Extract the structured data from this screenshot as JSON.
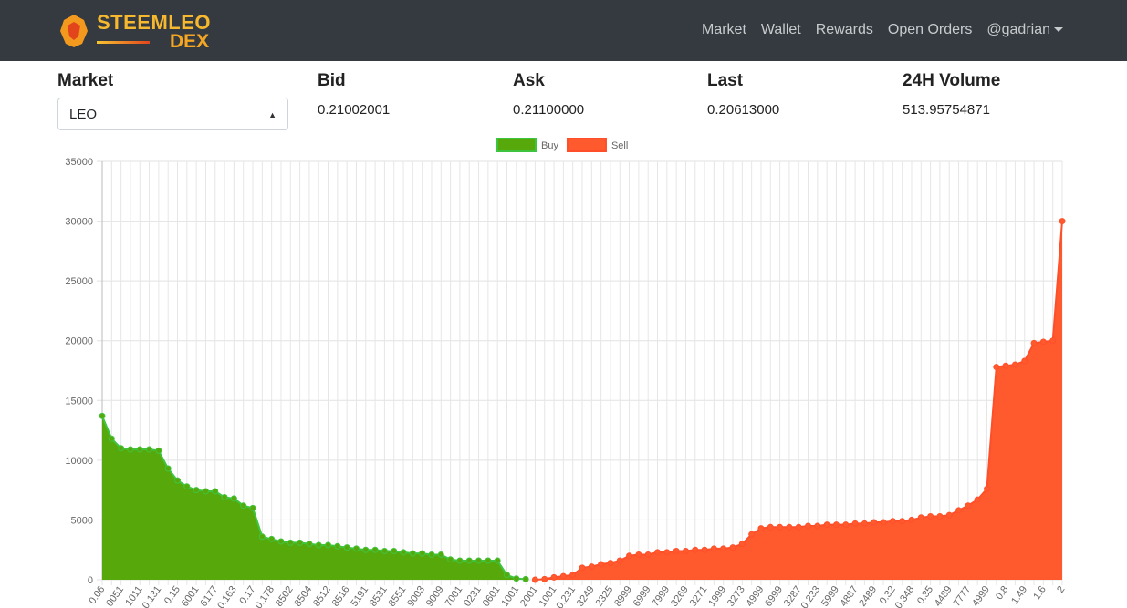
{
  "navbar": {
    "brand": [
      "STEEMLEO",
      "DEX"
    ],
    "links": [
      "Market",
      "Wallet",
      "Rewards",
      "Open Orders",
      "@gadrian"
    ]
  },
  "stats": [
    {
      "label": "Market",
      "value": "LEO"
    },
    {
      "label": "Bid",
      "value": "0.21002001"
    },
    {
      "label": "Ask",
      "value": "0.21100000"
    },
    {
      "label": "Last",
      "value": "0.20613000"
    },
    {
      "label": "24H Volume",
      "value": "513.95754871"
    }
  ],
  "chart_data": {
    "type": "area",
    "legend": "top",
    "categories": [
      "0.06",
      null,
      "0051",
      null,
      "1011",
      null,
      "0.131",
      null,
      "0.15",
      null,
      "6001",
      null,
      "6177",
      null,
      "0.163",
      null,
      "0.17",
      null,
      "0.178",
      null,
      "8502",
      null,
      "8504",
      null,
      "8512",
      null,
      "8516",
      null,
      "5191",
      null,
      "8531",
      null,
      "8551",
      null,
      "9003",
      null,
      "9009",
      null,
      "7001",
      null,
      "0231",
      null,
      "0601",
      null,
      "1001",
      null,
      "2001",
      null,
      "1001",
      null,
      "0.231",
      null,
      "3249",
      null,
      "2325",
      null,
      "8999",
      null,
      "6999",
      null,
      "7999",
      null,
      "3269",
      null,
      "3271",
      null,
      "1999",
      null,
      "3273",
      null,
      "4999",
      null,
      "6999",
      null,
      "3287",
      null,
      "0.233",
      null,
      "5999",
      null,
      "4887",
      null,
      "2489",
      null,
      "0.32",
      null,
      "0.348",
      null,
      "0.35",
      null,
      "4489",
      null,
      "7777",
      null,
      "4999",
      null,
      "0.8",
      null,
      "1.49",
      null,
      "1.6",
      null,
      "2"
    ],
    "series": [
      {
        "name": "Buy",
        "color": "#57a90b",
        "line_color": "#3fc43f",
        "values": [
          13700,
          11800,
          11000,
          10900,
          10900,
          10900,
          10800,
          9300,
          8300,
          7800,
          7500,
          7400,
          7400,
          6900,
          6800,
          6200,
          6000,
          3600,
          3400,
          3200,
          3100,
          3100,
          3000,
          2900,
          2900,
          2800,
          2700,
          2600,
          2500,
          2500,
          2400,
          2400,
          2300,
          2200,
          2200,
          2100,
          2100,
          1700,
          1600,
          1600,
          1600,
          1600,
          1600,
          400,
          100,
          50,
          null,
          null,
          null,
          null,
          null,
          null,
          null,
          null,
          null,
          null,
          null,
          null,
          null,
          null,
          null,
          null,
          null,
          null,
          null,
          null,
          null,
          null,
          null,
          null,
          null,
          null,
          null,
          null,
          null,
          null,
          null,
          null,
          null,
          null,
          null,
          null,
          null,
          null,
          null,
          null,
          null,
          null,
          null,
          null,
          null,
          null,
          null,
          null,
          null,
          null,
          null,
          null,
          null,
          null,
          null,
          null,
          null
        ]
      },
      {
        "name": "Sell",
        "color": "#ff5a2e",
        "line_color": "#ff4f2a",
        "values": [
          null,
          null,
          null,
          null,
          null,
          null,
          null,
          null,
          null,
          null,
          null,
          null,
          null,
          null,
          null,
          null,
          null,
          null,
          null,
          null,
          null,
          null,
          null,
          null,
          null,
          null,
          null,
          null,
          null,
          null,
          null,
          null,
          null,
          null,
          null,
          null,
          null,
          null,
          null,
          null,
          null,
          null,
          null,
          null,
          null,
          null,
          0,
          50,
          200,
          300,
          400,
          1000,
          1100,
          1300,
          1400,
          1600,
          2000,
          2100,
          2100,
          2300,
          2300,
          2400,
          2400,
          2500,
          2500,
          2600,
          2600,
          2700,
          3000,
          3800,
          4300,
          4400,
          4400,
          4400,
          4400,
          4500,
          4500,
          4600,
          4600,
          4600,
          4700,
          4700,
          4800,
          4800,
          4900,
          4900,
          5000,
          5200,
          5300,
          5300,
          5400,
          5800,
          6200,
          6700,
          7600,
          17800,
          17900,
          18000,
          18300,
          19800,
          19900,
          20000,
          30000
        ]
      }
    ],
    "ylim": [
      0,
      35000
    ],
    "yticks": [
      0,
      5000,
      10000,
      15000,
      20000,
      25000,
      30000,
      35000
    ],
    "grid": true
  }
}
